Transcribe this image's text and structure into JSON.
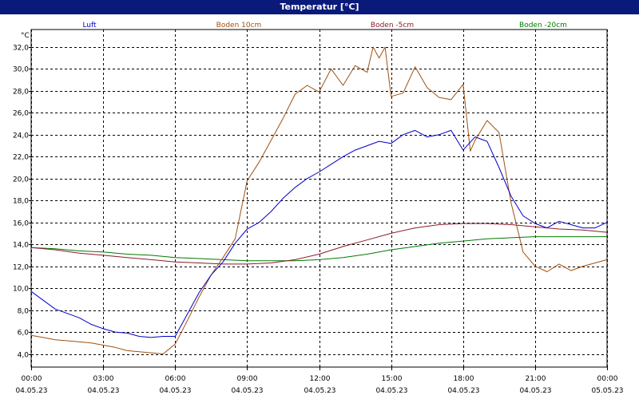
{
  "window": {
    "title": "Temperatur [°C]"
  },
  "colors": {
    "titlebar_bg": "#0a1a7a",
    "titlebar_fg": "#ffffff",
    "grid": "#000000",
    "axis_text": "#000000"
  },
  "chart_data": {
    "type": "line",
    "title": "Temperatur [°C]",
    "ylabel": "°C",
    "xlabel": "",
    "ylim": [
      2.8,
      33.6
    ],
    "xlim": [
      0,
      24
    ],
    "grid": true,
    "legend_position": "top",
    "y_ticks": [
      4,
      6,
      8,
      10,
      12,
      14,
      16,
      18,
      20,
      22,
      24,
      26,
      28,
      30,
      32
    ],
    "y_tick_labels": [
      "4,0",
      "6,0",
      "8,0",
      "10,0",
      "12,0",
      "14,0",
      "16,0",
      "18,0",
      "20,0",
      "22,0",
      "24,0",
      "26,0",
      "28,0",
      "30,0",
      "32,0"
    ],
    "x_ticks": [
      0,
      3,
      6,
      9,
      12,
      15,
      18,
      21,
      24
    ],
    "x_tick_labels": [
      {
        "time": "00:00",
        "date": "04.05.23"
      },
      {
        "time": "03:00",
        "date": "04.05.23"
      },
      {
        "time": "06:00",
        "date": "04.05.23"
      },
      {
        "time": "09:00",
        "date": "04.05.23"
      },
      {
        "time": "12:00",
        "date": "04.05.23"
      },
      {
        "time": "15:00",
        "date": "04.05.23"
      },
      {
        "time": "18:00",
        "date": "04.05.23"
      },
      {
        "time": "21:00",
        "date": "04.05.23"
      },
      {
        "time": "00:00",
        "date": "05.05.23"
      }
    ],
    "series": [
      {
        "name": "Luft",
        "color": "#0000cc",
        "points": [
          [
            0,
            9.7
          ],
          [
            0.5,
            8.9
          ],
          [
            1,
            8.1
          ],
          [
            1.5,
            7.7
          ],
          [
            2,
            7.3
          ],
          [
            2.5,
            6.7
          ],
          [
            3,
            6.3
          ],
          [
            3.5,
            6.0
          ],
          [
            4,
            5.9
          ],
          [
            4.5,
            5.6
          ],
          [
            5,
            5.5
          ],
          [
            5.5,
            5.6
          ],
          [
            6,
            5.6
          ],
          [
            6.5,
            7.6
          ],
          [
            7,
            9.6
          ],
          [
            7.5,
            11.2
          ],
          [
            8,
            12.4
          ],
          [
            8.5,
            14.1
          ],
          [
            9,
            15.4
          ],
          [
            9.5,
            16.0
          ],
          [
            10,
            17.0
          ],
          [
            10.5,
            18.2
          ],
          [
            11,
            19.2
          ],
          [
            11.5,
            20.0
          ],
          [
            12,
            20.6
          ],
          [
            12.5,
            21.3
          ],
          [
            13,
            22.0
          ],
          [
            13.5,
            22.6
          ],
          [
            14,
            23.0
          ],
          [
            14.5,
            23.4
          ],
          [
            15,
            23.2
          ],
          [
            15.5,
            24.0
          ],
          [
            16,
            24.4
          ],
          [
            16.5,
            23.8
          ],
          [
            17,
            24.0
          ],
          [
            17.5,
            24.4
          ],
          [
            18,
            22.6
          ],
          [
            18.5,
            23.8
          ],
          [
            19,
            23.4
          ],
          [
            19.5,
            21.0
          ],
          [
            20,
            18.4
          ],
          [
            20.5,
            16.6
          ],
          [
            21,
            15.9
          ],
          [
            21.5,
            15.5
          ],
          [
            22,
            16.1
          ],
          [
            22.5,
            15.8
          ],
          [
            23,
            15.5
          ],
          [
            23.5,
            15.5
          ],
          [
            24,
            16.0
          ]
        ]
      },
      {
        "name": "Boden 10cm",
        "color": "#a05010",
        "points": [
          [
            0,
            5.7
          ],
          [
            0.5,
            5.5
          ],
          [
            1,
            5.3
          ],
          [
            1.5,
            5.2
          ],
          [
            2,
            5.1
          ],
          [
            2.5,
            5.0
          ],
          [
            3,
            4.8
          ],
          [
            3.5,
            4.6
          ],
          [
            4,
            4.3
          ],
          [
            4.5,
            4.2
          ],
          [
            5,
            4.1
          ],
          [
            5.5,
            4.0
          ],
          [
            6,
            4.9
          ],
          [
            6.5,
            7.0
          ],
          [
            7,
            9.2
          ],
          [
            7.5,
            11.2
          ],
          [
            8,
            12.8
          ],
          [
            8.5,
            14.5
          ],
          [
            9,
            19.8
          ],
          [
            9.5,
            21.5
          ],
          [
            10,
            23.5
          ],
          [
            10.5,
            25.5
          ],
          [
            11,
            27.7
          ],
          [
            11.5,
            28.5
          ],
          [
            12,
            27.9
          ],
          [
            12.5,
            30.0
          ],
          [
            13,
            28.5
          ],
          [
            13.5,
            30.3
          ],
          [
            14,
            29.7
          ],
          [
            14.25,
            32.0
          ],
          [
            14.5,
            31.0
          ],
          [
            14.75,
            32.0
          ],
          [
            15,
            27.5
          ],
          [
            15.5,
            27.8
          ],
          [
            16,
            30.2
          ],
          [
            16.5,
            28.3
          ],
          [
            17,
            27.4
          ],
          [
            17.5,
            27.2
          ],
          [
            18,
            28.6
          ],
          [
            18.3,
            22.5
          ],
          [
            18.5,
            23.5
          ],
          [
            19,
            25.3
          ],
          [
            19.5,
            24.2
          ],
          [
            20,
            17.8
          ],
          [
            20.5,
            13.3
          ],
          [
            21,
            12.0
          ],
          [
            21.5,
            11.5
          ],
          [
            22,
            12.2
          ],
          [
            22.5,
            11.6
          ],
          [
            23,
            12.0
          ],
          [
            24,
            12.6
          ]
        ]
      },
      {
        "name": "Boden -5cm",
        "color": "#8b1a2a",
        "points": [
          [
            0,
            13.7
          ],
          [
            1,
            13.5
          ],
          [
            2,
            13.2
          ],
          [
            3,
            13.0
          ],
          [
            4,
            12.8
          ],
          [
            5,
            12.6
          ],
          [
            6,
            12.4
          ],
          [
            7,
            12.3
          ],
          [
            8,
            12.2
          ],
          [
            9,
            12.2
          ],
          [
            10,
            12.3
          ],
          [
            11,
            12.6
          ],
          [
            12,
            13.1
          ],
          [
            13,
            13.8
          ],
          [
            14,
            14.4
          ],
          [
            15,
            15.0
          ],
          [
            16,
            15.5
          ],
          [
            17,
            15.8
          ],
          [
            18,
            15.9
          ],
          [
            19,
            15.9
          ],
          [
            20,
            15.8
          ],
          [
            21,
            15.6
          ],
          [
            22,
            15.4
          ],
          [
            23,
            15.3
          ],
          [
            24,
            15.1
          ]
        ]
      },
      {
        "name": "Boden -20cm",
        "color": "#007a00",
        "points": [
          [
            0,
            13.7
          ],
          [
            1,
            13.6
          ],
          [
            2,
            13.4
          ],
          [
            3,
            13.3
          ],
          [
            4,
            13.1
          ],
          [
            5,
            13.0
          ],
          [
            6,
            12.8
          ],
          [
            7,
            12.7
          ],
          [
            8,
            12.6
          ],
          [
            9,
            12.5
          ],
          [
            10,
            12.5
          ],
          [
            11,
            12.5
          ],
          [
            12,
            12.6
          ],
          [
            13,
            12.8
          ],
          [
            14,
            13.1
          ],
          [
            15,
            13.5
          ],
          [
            16,
            13.8
          ],
          [
            17,
            14.1
          ],
          [
            18,
            14.3
          ],
          [
            19,
            14.5
          ],
          [
            20,
            14.6
          ],
          [
            21,
            14.7
          ],
          [
            22,
            14.7
          ],
          [
            23,
            14.7
          ],
          [
            24,
            14.7
          ]
        ]
      }
    ]
  }
}
